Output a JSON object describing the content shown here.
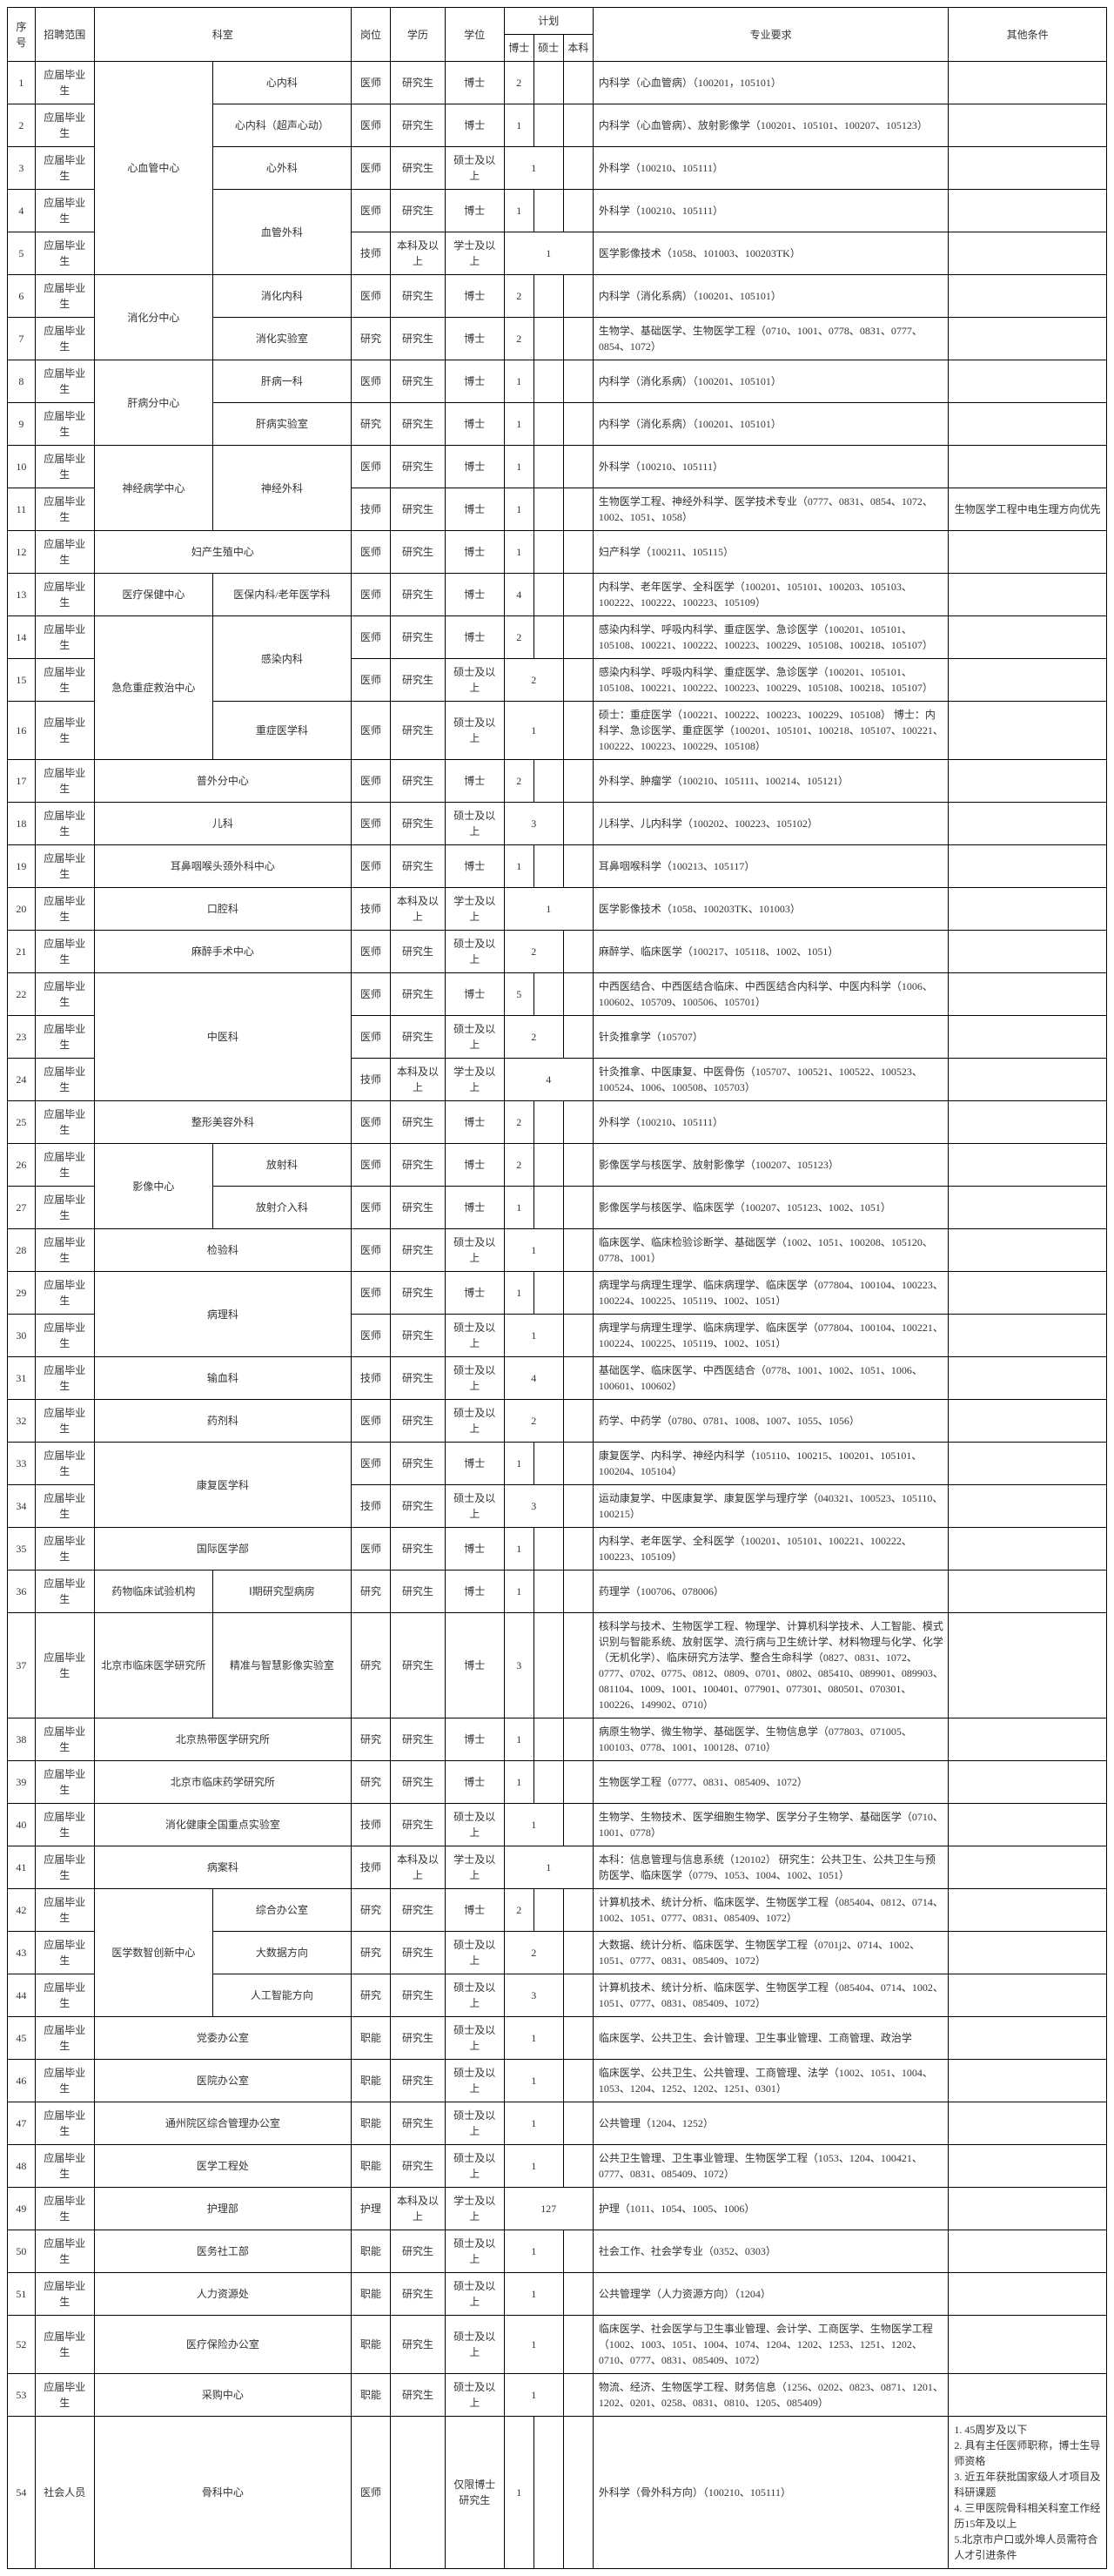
{
  "headers": {
    "seq": "序号",
    "scope": "招聘范围",
    "dept": "科室",
    "post": "岗位",
    "edu": "学历",
    "degree": "学位",
    "plan": "计划",
    "plan_doc": "博士",
    "plan_mas": "硕士",
    "plan_bac": "本科",
    "req": "专业要求",
    "other": "其他条件"
  },
  "scope_grad": "应届毕业生",
  "scope_social": "社会人员",
  "post_doctor": "医师",
  "post_tech": "技师",
  "post_research": "研究",
  "post_func": "职能",
  "post_nurse": "护理",
  "edu_grad": "研究生",
  "edu_bach_up": "本科及以上",
  "deg_doc": "博士",
  "deg_mas_up": "硕士及以上",
  "deg_bach_up": "学士及以上",
  "deg_doc_only": "仅限博士研究生",
  "depts": {
    "cardio_center": "心血管中心",
    "cardio_int": "心内科",
    "cardio_us": "心内科（超声心动）",
    "cardio_surg": "心外科",
    "vascular": "血管外科",
    "digest_sub": "消化分中心",
    "digest_int": "消化内科",
    "digest_lab": "消化实验室",
    "liver_sub": "肝病分中心",
    "liver1": "肝病一科",
    "liver_lab": "肝病实验室",
    "neuro_center": "神经病学中心",
    "neuro_surg": "神经外科",
    "ob_repro": "妇产生殖中心",
    "health_center": "医疗保健中心",
    "health_geriatric": "医保内科/老年医学科",
    "emerg_center": "急危重症救治中心",
    "infect": "感染内科",
    "icu": "重症医学科",
    "general_surg": "普外分中心",
    "ped": "儿科",
    "ent": "耳鼻咽喉头颈外科中心",
    "dental": "口腔科",
    "anesth": "麻醉手术中心",
    "tcm": "中医科",
    "plastic": "整形美容外科",
    "imaging_center": "影像中心",
    "radiology": "放射科",
    "interv": "放射介入科",
    "lab": "检验科",
    "patho": "病理科",
    "transfusion": "输血科",
    "pharmacy": "药剂科",
    "rehab": "康复医学科",
    "intl": "国际医学部",
    "drug_trial": "药物临床试验机构",
    "phase1": "Ⅰ期研究型病房",
    "bj_inst": "北京市临床医学研究所",
    "precision": "精准与智慧影像实验室",
    "tropical": "北京热带医学研究所",
    "clin_pharm": "北京市临床药学研究所",
    "digest_natl": "消化健康全国重点实验室",
    "records": "病案科",
    "digital_center": "医学数智创新中心",
    "integrated": "综合办公室",
    "bigdata": "大数据方向",
    "ai": "人工智能方向",
    "party": "党委办公室",
    "dean": "医院办公室",
    "tongzhou": "通州院区综合管理办公室",
    "engineering": "医学工程处",
    "nursing": "护理部",
    "social": "医务社工部",
    "hr": "人力资源处",
    "insurance": "医疗保险办公室",
    "purchase": "采购中心",
    "ortho": "骨科中心"
  },
  "reqs": {
    "r1": "内科学（心血管病）（100201，105101）",
    "r2": "内科学（心血管病）、放射影像学（100201、105101、100207、105123）",
    "r3": "外科学（100210、105111）",
    "r4": "外科学（100210、105111）",
    "r5": "医学影像技术（1058、101003、100203TK）",
    "r6": "内科学（消化系病）（100201、105101）",
    "r7": "生物学、基础医学、生物医学工程（0710、1001、0778、0831、0777、0854、1072）",
    "r8": "内科学（消化系病）（100201、105101）",
    "r9": "内科学（消化系病）（100201、105101）",
    "r10": "外科学（100210、105111）",
    "r11": "生物医学工程、神经外科学、医学技术专业（0777、0831、0854、1072、1002、1051、1058）",
    "r12": "妇产科学（100211、105115）",
    "r13": "内科学、老年医学、全科医学（100201、105101、100203、105103、100222、100222、100223、105109）",
    "r14": "感染内科学、呼吸内科学、重症医学、急诊医学（100201、105101、105108、100221、100222、100223、100229、105108、100218、105107）",
    "r15": "感染内科学、呼吸内科学、重症医学、急诊医学（100201、105101、105108、100221、100222、100223、100229、105108、100218、105107）",
    "r16": "硕士：重症医学（100221、100222、100223、100229、105108）\n博士：内科学、急诊医学、重症医学（100201、105101、100218、105107、100221、100222、100223、100229、105108）",
    "r17": "外科学、肿瘤学（100210、105111、100214、105121）",
    "r18": "儿科学、儿内科学（100202、100223、105102）",
    "r19": "耳鼻咽喉科学（100213、105117）",
    "r20": "医学影像技术（1058、100203TK、101003）",
    "r21": "麻醉学、临床医学（100217、105118、1002、1051）",
    "r22": "中西医结合、中西医结合临床、中西医结合内科学、中医内科学（1006、100602、105709、100506、105701）",
    "r23": "针灸推拿学（105707）",
    "r24": "针灸推拿、中医康复、中医骨伤（105707、100521、100522、100523、100524、1006、100508、105703）",
    "r25": "外科学（100210、105111）",
    "r26": "影像医学与核医学、放射影像学（100207、105123）",
    "r27": "影像医学与核医学、临床医学（100207、105123、1002、1051）",
    "r28": "临床医学、临床检验诊断学、基础医学（1002、1051、100208、105120、0778、1001）",
    "r29": "病理学与病理生理学、临床病理学、临床医学（077804、100104、100223、100224、100225、105119、1002、1051）",
    "r30": "病理学与病理生理学、临床病理学、临床医学（077804、100104、100221、100224、100225、105119、1002、1051）",
    "r31": "基础医学、临床医学、中西医结合（0778、1001、1002、1051、1006、100601、100602）",
    "r32": "药学、中药学（0780、0781、1008、1007、1055、1056）",
    "r33": "康复医学、内科学、神经内科学（105110、100215、100201、105101、100204、105104）",
    "r34": "运动康复学、中医康复学、康复医学与理疗学（040321、100523、105110、100215）",
    "r35": "内科学、老年医学、全科医学（100201、105101、100221、100222、100223、105109）",
    "r36": "药理学（100706、078006）",
    "r37": "核科学与技术、生物医学工程、物理学、计算机科学技术、人工智能、模式识别与智能系统、放射医学、流行病与卫生统计学、材料物理与化学、化学（无机化学）、临床研究方法学、整合生命科学（0827、0831、1072、0777、0702、0775、0812、0809、0701、0802、085410、089901、089903、081104、1009、1001、100401、077901、077301、080501、070301、100226、149902、0710）",
    "r38": "病原生物学、微生物学、基础医学、生物信息学（077803、071005、100103、0778、1001、100128、0710）",
    "r39": "生物医学工程（0777、0831、085409、1072）",
    "r40": "生物学、生物技术、医学细胞生物学、医学分子生物学、基础医学（0710、1001、0778）",
    "r41": "本科：信息管理与信息系统（120102）\n研究生：公共卫生、公共卫生与预防医学、临床医学（0779、1053、1004、1002、1051）",
    "r42": "计算机技术、统计分析、临床医学、生物医学工程（085404、0812、0714、1002、1051、0777、0831、085409、1072）",
    "r43": "大数据、统计分析、临床医学、生物医学工程（0701j2、0714、1002、1051、0777、0831、085409、1072）",
    "r44": "计算机技术、统计分析、临床医学、生物医学工程（085404、0714、1002、1051、0777、0831、085409、1072）",
    "r45": "临床医学、公共卫生、会计管理、卫生事业管理、工商管理、政治学",
    "r46": "临床医学、公共卫生、公共管理、工商管理、法学（1002、1051、1004、1053、1204、1252、1202、1251、0301）",
    "r47": "公共管理（1204、1252）",
    "r48": "公共卫生管理、卫生事业管理、生物医学工程（1053、1204、100421、0777、0831、085409、1072）",
    "r49": "护理（1011、1054、1005、1006）",
    "r50": "社会工作、社会学专业（0352、0303）",
    "r51": "公共管理学（人力资源方向）（1204）",
    "r52": "临床医学、社会医学与卫生事业管理、会计学、工商医学、生物医学工程（1002、1003、1051、1004、1074、1204、1202、1253、1251、1202、0710、0777、0831、085409、1072）",
    "r53": "物流、经济、生物医学工程、财务信息（1256、0202、0823、0871、1201、1202、0201、0258、0831、0810、1205、085409）",
    "r54": "外科学（骨外科方向）（100210、105111）"
  },
  "others": {
    "o11": "生物医学工程中电生理方向优先",
    "o54": "1. 45周岁及以下\n2. 具有主任医师职称，博士生导师资格\n3. 近五年获批国家级人才项目及科研课题\n4. 三甲医院骨科相关科室工作经历15年及以上\n5.北京市户口或外埠人员需符合人才引进条件"
  }
}
